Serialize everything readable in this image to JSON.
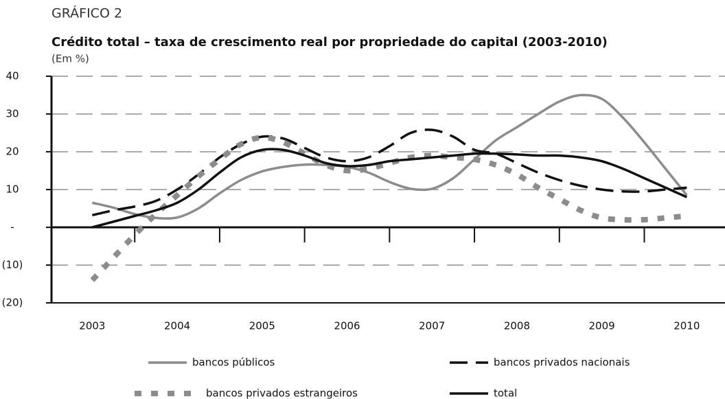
{
  "chart_data": {
    "type": "line",
    "kicker": "GRÁFICO 2",
    "title": "Crédito total – taxa de crescimento real por propriedade do capital (2003-2010)",
    "subtitle": "(Em %)",
    "x": [
      2003,
      2003.25,
      2003.5,
      2003.75,
      2004,
      2004.25,
      2004.5,
      2004.75,
      2005,
      2005.25,
      2005.5,
      2005.75,
      2006,
      2006.25,
      2006.5,
      2006.75,
      2007,
      2007.25,
      2007.5,
      2007.75,
      2008,
      2008.25,
      2008.5,
      2008.75,
      2009,
      2009.25,
      2009.5,
      2009.75,
      2010
    ],
    "xlim": [
      2002.52,
      2010.45
    ],
    "xticks": [
      2003,
      2004,
      2005,
      2006,
      2007,
      2008,
      2009,
      2010
    ],
    "ylim": [
      -20,
      40
    ],
    "yticks": [
      40,
      30,
      20,
      10,
      {
        "value": 0,
        "label": "-"
      },
      {
        "value": -10,
        "label": "(10)"
      },
      {
        "value": -20,
        "label": "(20)"
      }
    ],
    "grid": true,
    "series": [
      {
        "name": "bancos públicos",
        "color": "#8c8c8c",
        "style": "solid",
        "values": [
          6.5,
          5.2,
          3.5,
          2.5,
          2.6,
          5,
          9,
          12.5,
          14.8,
          16,
          16.6,
          16.5,
          16,
          14.5,
          12,
          10.2,
          10.2,
          13,
          18,
          23,
          26.5,
          30,
          33.3,
          35,
          34,
          29,
          22.5,
          15.5,
          8.5
        ]
      },
      {
        "name": "bancos privados nacionais",
        "color": "#111111",
        "style": "dashed",
        "values": [
          3.2,
          4.5,
          5.5,
          7,
          10,
          14,
          18.5,
          22,
          24,
          23.5,
          21,
          18.5,
          17.5,
          18.5,
          21.5,
          25,
          25.8,
          24,
          20.5,
          19.5,
          17,
          14.5,
          12.5,
          11,
          10,
          9.5,
          9.5,
          10,
          10.5
        ]
      },
      {
        "name": "bancos privados estrangeiros",
        "color": "#8c8c8c",
        "style": "dotted",
        "values": [
          -14,
          -8,
          -2,
          3.5,
          8.5,
          13.5,
          18,
          22,
          23.8,
          22.5,
          19.5,
          16.5,
          15,
          15.5,
          17,
          18.5,
          19,
          18.5,
          18,
          16.5,
          14,
          10.5,
          7.5,
          4.5,
          2.5,
          2,
          2,
          2.5,
          3
        ]
      },
      {
        "name": "total",
        "color": "#111111",
        "style": "solid",
        "values": [
          0,
          1.5,
          3,
          4.5,
          6.5,
          10,
          14.5,
          18.5,
          20.5,
          20.5,
          19,
          17,
          16.2,
          16.5,
          17.5,
          18,
          18.5,
          19,
          19.5,
          19.5,
          19.3,
          19,
          19,
          18.5,
          17.5,
          15.5,
          13,
          10.5,
          8
        ]
      }
    ]
  }
}
